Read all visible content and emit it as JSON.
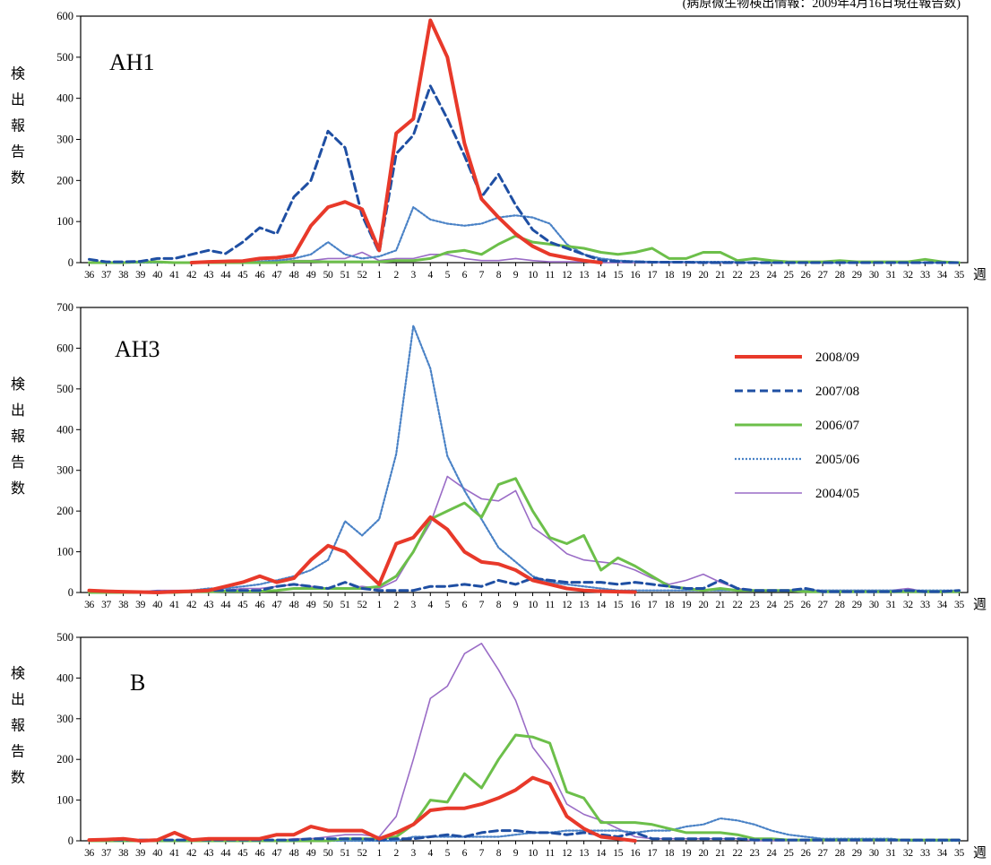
{
  "note": "(病原微生物検出情報：2009年4月16日現在報告数)",
  "legend": [
    {
      "name": "2008/09",
      "color": "#e8392a",
      "width": 4,
      "dash": ""
    },
    {
      "name": "2007/08",
      "color": "#1f4fa3",
      "width": 3,
      "dash": "9,5"
    },
    {
      "name": "2006/07",
      "color": "#6cbf4a",
      "width": 3,
      "dash": ""
    },
    {
      "name": "2005/06",
      "color": "#4a82c6",
      "width": 2.2,
      "dash": "2,2"
    },
    {
      "name": "2004/05",
      "color": "#9a6cc6",
      "width": 1.6,
      "dash": ""
    }
  ],
  "chart_data": [
    {
      "type": "line",
      "title": "AH1",
      "ylabel": "検出報告数",
      "xlabel": "週",
      "ylim": [
        0,
        600
      ],
      "yticks": [
        0,
        100,
        200,
        300,
        400,
        500,
        600
      ],
      "categories": [
        "36",
        "37",
        "38",
        "39",
        "40",
        "41",
        "42",
        "43",
        "44",
        "45",
        "46",
        "47",
        "48",
        "49",
        "50",
        "51",
        "52",
        "1",
        "2",
        "3",
        "4",
        "5",
        "6",
        "7",
        "8",
        "9",
        "10",
        "11",
        "12",
        "13",
        "14",
        "15",
        "16",
        "17",
        "18",
        "19",
        "20",
        "21",
        "22",
        "23",
        "24",
        "25",
        "26",
        "27",
        "28",
        "29",
        "30",
        "31",
        "32",
        "33",
        "34",
        "35"
      ],
      "series": [
        {
          "name": "2008/09",
          "values": [
            null,
            null,
            null,
            null,
            null,
            null,
            0,
            2,
            3,
            4,
            10,
            12,
            18,
            90,
            135,
            148,
            130,
            30,
            315,
            350,
            590,
            500,
            290,
            155,
            110,
            70,
            40,
            20,
            12,
            5,
            0,
            null,
            null,
            null,
            null,
            null,
            null,
            null,
            null,
            null,
            null,
            null,
            null,
            null,
            null,
            null,
            null,
            null,
            null,
            null,
            null,
            null
          ]
        },
        {
          "name": "2007/08",
          "values": [
            8,
            2,
            2,
            3,
            10,
            10,
            20,
            30,
            22,
            50,
            85,
            70,
            160,
            200,
            320,
            280,
            115,
            25,
            265,
            310,
            430,
            350,
            260,
            160,
            215,
            140,
            80,
            50,
            35,
            20,
            5,
            3,
            2,
            1,
            1,
            1,
            0,
            0,
            0,
            0,
            0,
            0,
            0,
            0,
            0,
            0,
            0,
            0,
            0,
            0,
            0,
            0
          ]
        },
        {
          "name": "2006/07",
          "values": [
            0,
            0,
            0,
            2,
            2,
            0,
            0,
            0,
            0,
            0,
            0,
            0,
            3,
            3,
            2,
            2,
            2,
            2,
            5,
            5,
            10,
            25,
            30,
            20,
            45,
            65,
            50,
            45,
            40,
            35,
            25,
            20,
            25,
            35,
            10,
            10,
            25,
            25,
            5,
            10,
            5,
            2,
            2,
            2,
            5,
            2,
            2,
            2,
            2,
            8,
            2,
            0
          ]
        },
        {
          "name": "2005/06",
          "values": [
            0,
            0,
            0,
            0,
            0,
            0,
            0,
            0,
            0,
            0,
            3,
            5,
            10,
            20,
            50,
            20,
            10,
            15,
            30,
            135,
            105,
            95,
            90,
            95,
            110,
            115,
            110,
            95,
            45,
            20,
            10,
            5,
            3,
            2,
            2,
            2,
            2,
            2,
            2,
            0,
            0,
            0,
            0,
            0,
            0,
            0,
            0,
            0,
            0,
            0,
            0,
            0
          ]
        },
        {
          "name": "2004/05",
          "values": [
            0,
            0,
            0,
            0,
            0,
            0,
            0,
            0,
            0,
            0,
            2,
            2,
            5,
            5,
            10,
            10,
            25,
            5,
            10,
            10,
            20,
            20,
            10,
            5,
            5,
            10,
            5,
            2,
            2,
            2,
            0,
            0,
            0,
            0,
            0,
            0,
            0,
            0,
            0,
            0,
            0,
            0,
            0,
            0,
            0,
            0,
            0,
            0,
            0,
            0,
            0,
            0
          ]
        }
      ]
    },
    {
      "type": "line",
      "title": "AH3",
      "ylabel": "検出報告数",
      "xlabel": "週",
      "ylim": [
        0,
        700
      ],
      "yticks": [
        0,
        100,
        200,
        300,
        400,
        500,
        600,
        700
      ],
      "categories": [
        "36",
        "37",
        "38",
        "39",
        "40",
        "41",
        "42",
        "43",
        "44",
        "45",
        "46",
        "47",
        "48",
        "49",
        "50",
        "51",
        "52",
        "1",
        "2",
        "3",
        "4",
        "5",
        "6",
        "7",
        "8",
        "9",
        "10",
        "11",
        "12",
        "13",
        "14",
        "15",
        "16",
        "17",
        "18",
        "19",
        "20",
        "21",
        "22",
        "23",
        "24",
        "25",
        "26",
        "27",
        "28",
        "29",
        "30",
        "31",
        "32",
        "33",
        "34",
        "35"
      ],
      "series": [
        {
          "name": "2008/09",
          "values": [
            5,
            3,
            2,
            1,
            0,
            2,
            3,
            5,
            15,
            25,
            40,
            25,
            35,
            80,
            115,
            100,
            60,
            20,
            120,
            135,
            185,
            155,
            100,
            75,
            70,
            55,
            30,
            20,
            10,
            5,
            3,
            2,
            1,
            null,
            null,
            null,
            null,
            null,
            null,
            null,
            null,
            null,
            null,
            null,
            null,
            null,
            null,
            null,
            null,
            null,
            null,
            null
          ]
        },
        {
          "name": "2007/08",
          "values": [
            5,
            3,
            2,
            1,
            2,
            2,
            3,
            5,
            5,
            5,
            5,
            15,
            20,
            15,
            10,
            25,
            10,
            5,
            5,
            5,
            15,
            15,
            20,
            15,
            30,
            20,
            35,
            30,
            25,
            25,
            25,
            20,
            25,
            20,
            15,
            10,
            10,
            30,
            10,
            5,
            5,
            5,
            10,
            2,
            2,
            2,
            2,
            2,
            5,
            2,
            2,
            5
          ]
        },
        {
          "name": "2006/07",
          "values": [
            0,
            0,
            0,
            0,
            0,
            0,
            2,
            2,
            3,
            3,
            3,
            5,
            10,
            10,
            10,
            10,
            10,
            15,
            40,
            100,
            180,
            200,
            220,
            185,
            265,
            280,
            200,
            135,
            120,
            140,
            55,
            85,
            65,
            40,
            15,
            10,
            5,
            10,
            5,
            5,
            5,
            5,
            2,
            2,
            2,
            2,
            2,
            2,
            2,
            2,
            2,
            2
          ]
        },
        {
          "name": "2005/06",
          "values": [
            0,
            0,
            0,
            0,
            0,
            0,
            5,
            10,
            10,
            15,
            20,
            30,
            40,
            55,
            80,
            175,
            140,
            180,
            340,
            655,
            550,
            335,
            250,
            180,
            110,
            75,
            40,
            25,
            20,
            15,
            10,
            5,
            5,
            5,
            5,
            5,
            5,
            5,
            5,
            5,
            5,
            5,
            5,
            5,
            5,
            5,
            5,
            5,
            5,
            5,
            5,
            5
          ]
        },
        {
          "name": "2004/05",
          "values": [
            2,
            2,
            2,
            2,
            5,
            5,
            5,
            5,
            5,
            10,
            10,
            15,
            20,
            15,
            10,
            10,
            15,
            10,
            30,
            100,
            170,
            285,
            255,
            230,
            225,
            250,
            160,
            130,
            95,
            80,
            75,
            70,
            55,
            35,
            20,
            30,
            45,
            25,
            10,
            5,
            5,
            5,
            5,
            5,
            5,
            5,
            5,
            5,
            10,
            2,
            2,
            2
          ]
        }
      ]
    },
    {
      "type": "line",
      "title": "B",
      "ylabel": "検出報告数",
      "xlabel": "週",
      "ylim": [
        0,
        500
      ],
      "yticks": [
        0,
        100,
        200,
        300,
        400,
        500
      ],
      "categories": [
        "36",
        "37",
        "38",
        "39",
        "40",
        "41",
        "42",
        "43",
        "44",
        "45",
        "46",
        "47",
        "48",
        "49",
        "50",
        "51",
        "52",
        "1",
        "2",
        "3",
        "4",
        "5",
        "6",
        "7",
        "8",
        "9",
        "10",
        "11",
        "12",
        "13",
        "14",
        "15",
        "16",
        "17",
        "18",
        "19",
        "20",
        "21",
        "22",
        "23",
        "24",
        "25",
        "26",
        "27",
        "28",
        "29",
        "30",
        "31",
        "32",
        "33",
        "34",
        "35"
      ],
      "series": [
        {
          "name": "2008/09",
          "values": [
            2,
            3,
            5,
            0,
            2,
            20,
            2,
            5,
            5,
            5,
            5,
            15,
            15,
            35,
            25,
            25,
            25,
            5,
            20,
            40,
            75,
            80,
            80,
            90,
            105,
            125,
            155,
            140,
            60,
            30,
            10,
            5,
            0,
            null,
            null,
            null,
            null,
            null,
            null,
            null,
            null,
            null,
            null,
            null,
            null,
            null,
            null,
            null,
            null,
            null,
            null,
            null
          ]
        },
        {
          "name": "2007/08",
          "values": [
            2,
            2,
            2,
            2,
            2,
            2,
            2,
            2,
            2,
            2,
            2,
            2,
            2,
            5,
            5,
            5,
            5,
            2,
            5,
            5,
            10,
            15,
            10,
            20,
            25,
            25,
            20,
            20,
            15,
            20,
            15,
            10,
            20,
            5,
            5,
            5,
            5,
            5,
            5,
            2,
            2,
            2,
            2,
            2,
            2,
            2,
            2,
            2,
            2,
            2,
            2,
            2
          ]
        },
        {
          "name": "2006/07",
          "values": [
            0,
            0,
            0,
            0,
            0,
            0,
            0,
            0,
            0,
            0,
            0,
            0,
            0,
            0,
            0,
            5,
            5,
            5,
            10,
            40,
            100,
            95,
            165,
            130,
            200,
            260,
            255,
            240,
            120,
            105,
            45,
            45,
            45,
            40,
            30,
            20,
            20,
            20,
            15,
            5,
            5,
            2,
            2,
            2,
            2,
            2,
            2,
            2,
            2,
            2,
            2,
            2
          ]
        },
        {
          "name": "2005/06",
          "values": [
            0,
            0,
            0,
            0,
            0,
            0,
            0,
            0,
            0,
            0,
            0,
            0,
            0,
            0,
            0,
            0,
            0,
            0,
            0,
            10,
            10,
            10,
            10,
            10,
            10,
            15,
            20,
            20,
            25,
            25,
            25,
            25,
            20,
            25,
            25,
            35,
            40,
            55,
            50,
            40,
            25,
            15,
            10,
            5,
            5,
            5,
            5,
            5,
            0,
            0,
            0,
            0
          ]
        },
        {
          "name": "2004/05",
          "values": [
            0,
            0,
            0,
            0,
            0,
            0,
            0,
            0,
            0,
            0,
            0,
            0,
            5,
            5,
            10,
            15,
            15,
            10,
            60,
            200,
            350,
            380,
            460,
            485,
            420,
            345,
            230,
            175,
            90,
            65,
            50,
            30,
            10,
            5,
            5,
            5,
            5,
            5,
            5,
            0,
            0,
            0,
            0,
            0,
            0,
            0,
            0,
            0,
            0,
            0,
            0,
            0
          ]
        }
      ]
    }
  ]
}
